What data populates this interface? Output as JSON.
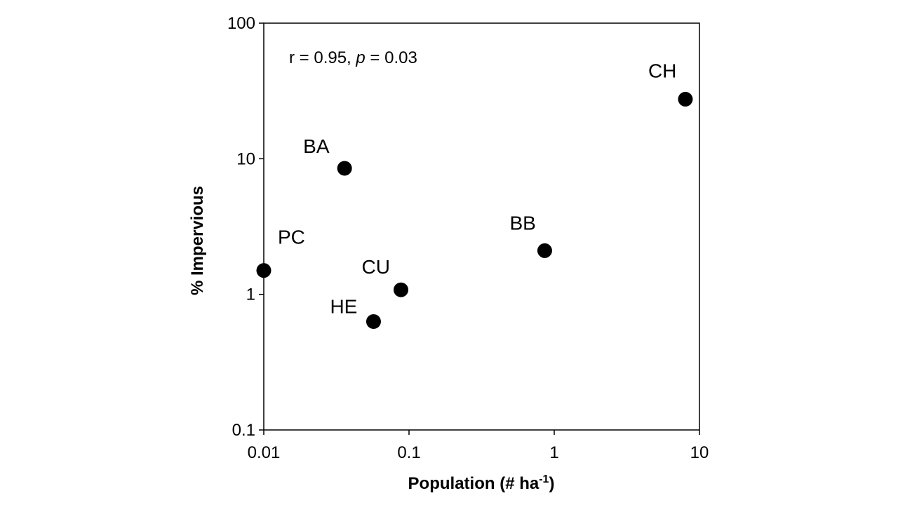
{
  "chart_data": {
    "type": "scatter",
    "title": "",
    "xlabel": {
      "main": "Population (# ha",
      "superscript": "-1",
      "close": ")"
    },
    "ylabel": "% Impervious",
    "xscale": "log",
    "yscale": "log",
    "xlim": [
      0.01,
      10
    ],
    "ylim": [
      0.1,
      100
    ],
    "x_ticks": [
      {
        "value": 0.01,
        "label": "0.01"
      },
      {
        "value": 0.1,
        "label": "0.1"
      },
      {
        "value": 1,
        "label": "1"
      },
      {
        "value": 10,
        "label": "10"
      }
    ],
    "y_ticks": [
      {
        "value": 0.1,
        "label": "0.1"
      },
      {
        "value": 1,
        "label": "1"
      },
      {
        "value": 10,
        "label": "10"
      },
      {
        "value": 100,
        "label": "100"
      }
    ],
    "grid": false,
    "legend": "none",
    "annotation": {
      "prefix": "r = 0.95, ",
      "p_symbol": "p",
      "suffix": " = 0.03"
    },
    "points": [
      {
        "label": "PC",
        "x": 0.01,
        "y": 1.5
      },
      {
        "label": "BA",
        "x": 0.036,
        "y": 8.5
      },
      {
        "label": "CU",
        "x": 0.088,
        "y": 1.08
      },
      {
        "label": "HE",
        "x": 0.057,
        "y": 0.63
      },
      {
        "label": "BB",
        "x": 0.86,
        "y": 2.1
      },
      {
        "label": "CH",
        "x": 8.0,
        "y": 27.5
      }
    ],
    "colors": {
      "marker": "#000000",
      "axis": "#000000",
      "background": "#ffffff"
    }
  }
}
